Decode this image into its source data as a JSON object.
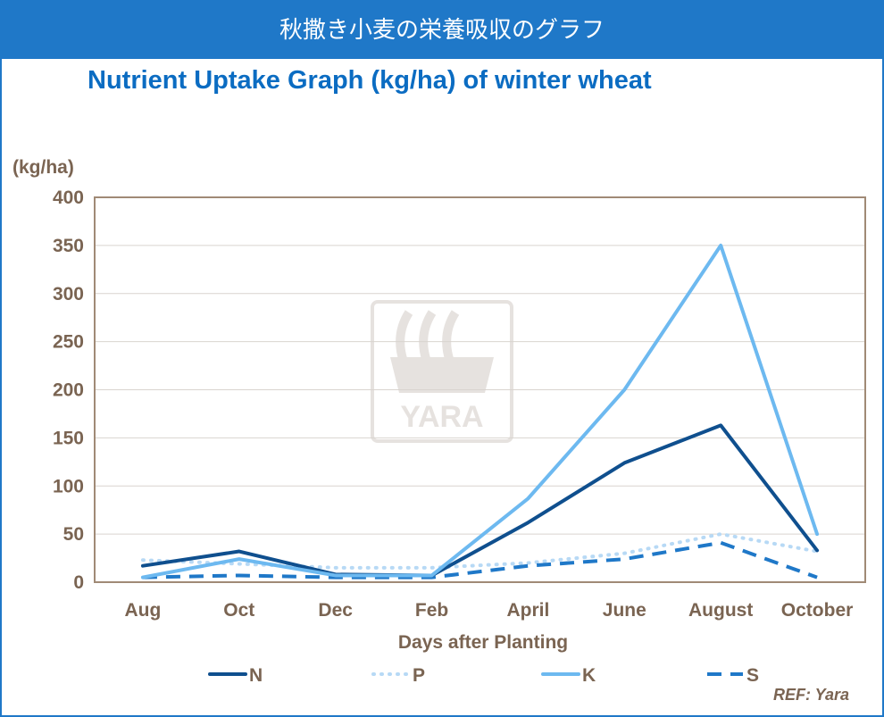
{
  "banner": {
    "text": "秋撒き小麦の栄養吸収のグラフ"
  },
  "watermark": {
    "text": "YARA"
  },
  "footer": {
    "ref": "REF: Yara"
  },
  "colors": {
    "banner": "#1f78c8",
    "title": "#0b6cc2",
    "axis_text": "#7a6452",
    "N": "#0f4f8e",
    "P": "#b7d9f5",
    "K": "#6db9f0",
    "S": "#1f78c8"
  },
  "chart_data": {
    "type": "line",
    "title": "Nutrient Uptake Graph (kg/ha) of winter wheat",
    "xlabel": "Days after Planting",
    "ylabel": "(kg/ha)",
    "ylim": [
      0,
      400
    ],
    "yticks": [
      0,
      50,
      100,
      150,
      200,
      250,
      300,
      350,
      400
    ],
    "grid": true,
    "legend_position": "bottom",
    "categories": [
      "Aug",
      "Oct",
      "Dec",
      "Feb",
      "April",
      "June",
      "August",
      "October"
    ],
    "series": [
      {
        "name": "N",
        "style": "solid",
        "values": [
          17,
          32,
          8,
          7,
          62,
          124,
          163,
          33
        ]
      },
      {
        "name": "P",
        "style": "dotted",
        "values": [
          23,
          19,
          15,
          15,
          20,
          30,
          50,
          32
        ]
      },
      {
        "name": "K",
        "style": "solid",
        "values": [
          5,
          24,
          7,
          7,
          87,
          200,
          350,
          50
        ]
      },
      {
        "name": "S",
        "style": "dashed",
        "values": [
          5,
          7,
          5,
          5,
          17,
          24,
          41,
          5
        ]
      }
    ]
  }
}
